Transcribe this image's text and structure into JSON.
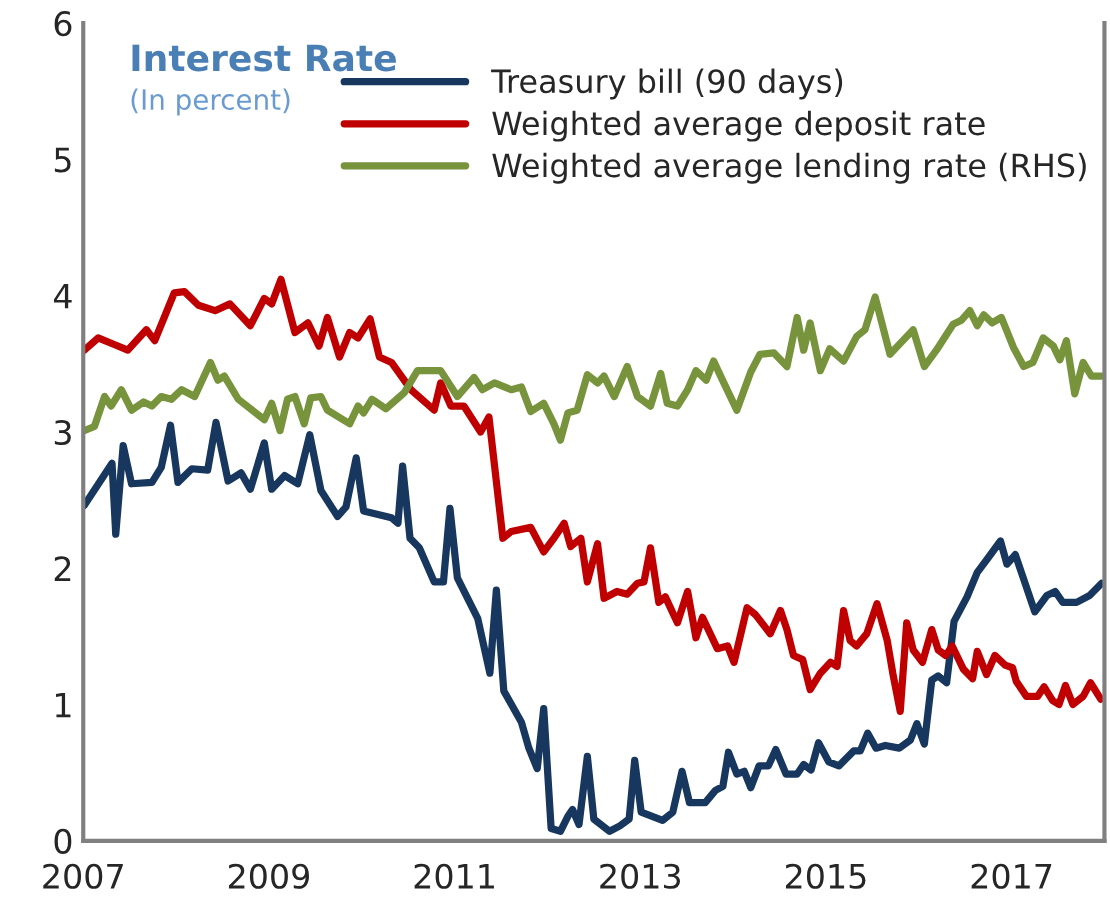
{
  "chart_data": {
    "type": "line",
    "title": "Interest Rate",
    "subtitle": "(In percent)",
    "xlim": [
      2007,
      2018
    ],
    "xticks": [
      2007,
      2009,
      2011,
      2013,
      2015,
      2017
    ],
    "ylim": [
      0,
      6
    ],
    "yticks": [
      0,
      1,
      2,
      3,
      4,
      5,
      6
    ],
    "grid": false,
    "legend": "top",
    "marker": "none",
    "line_style": "solid",
    "series": [
      {
        "name": "Treasury bill (90 days)",
        "color": "#17375e",
        "x": [
          2007.01,
          2007.31,
          2007.35,
          2007.43,
          2007.52,
          2007.74,
          2007.84,
          2007.94,
          2008.02,
          2008.17,
          2008.34,
          2008.43,
          2008.56,
          2008.7,
          2008.8,
          2008.95,
          2009.03,
          2009.17,
          2009.31,
          2009.44,
          2009.56,
          2009.74,
          2009.83,
          2009.94,
          2010.02,
          2010.32,
          2010.39,
          2010.44,
          2010.52,
          2010.62,
          2010.78,
          2010.88,
          2010.95,
          2011.03,
          2011.25,
          2011.38,
          2011.45,
          2011.53,
          2011.72,
          2011.8,
          2011.89,
          2011.96,
          2012.04,
          2012.14,
          2012.22,
          2012.27,
          2012.34,
          2012.43,
          2012.5,
          2012.67,
          2012.78,
          2012.88,
          2012.94,
          2013.01,
          2013.24,
          2013.35,
          2013.45,
          2013.53,
          2013.7,
          2013.81,
          2013.89,
          2013.95,
          2014.04,
          2014.12,
          2014.19,
          2014.28,
          2014.38,
          2014.46,
          2014.57,
          2014.69,
          2014.76,
          2014.84,
          2014.92,
          2015.03,
          2015.14,
          2015.3,
          2015.37,
          2015.45,
          2015.54,
          2015.64,
          2015.79,
          2015.91,
          2015.98,
          2016.06,
          2016.14,
          2016.21,
          2016.3,
          2016.38,
          2016.52,
          2016.63,
          2016.74,
          2016.88,
          2016.95,
          2017.04,
          2017.25,
          2017.38,
          2017.47,
          2017.55,
          2017.7,
          2017.84,
          2017.97
        ],
        "values": [
          2.46,
          2.77,
          2.25,
          2.9,
          2.62,
          2.63,
          2.74,
          3.05,
          2.63,
          2.73,
          2.72,
          3.07,
          2.64,
          2.7,
          2.58,
          2.92,
          2.58,
          2.68,
          2.62,
          2.98,
          2.57,
          2.38,
          2.45,
          2.81,
          2.42,
          2.37,
          2.33,
          2.75,
          2.22,
          2.15,
          1.9,
          1.9,
          2.44,
          1.93,
          1.63,
          1.23,
          1.84,
          1.1,
          0.87,
          0.68,
          0.53,
          0.97,
          0.09,
          0.07,
          0.18,
          0.23,
          0.12,
          0.62,
          0.16,
          0.07,
          0.11,
          0.16,
          0.59,
          0.21,
          0.15,
          0.21,
          0.51,
          0.28,
          0.28,
          0.37,
          0.4,
          0.65,
          0.49,
          0.51,
          0.39,
          0.55,
          0.55,
          0.67,
          0.49,
          0.49,
          0.56,
          0.52,
          0.72,
          0.58,
          0.55,
          0.66,
          0.66,
          0.79,
          0.68,
          0.7,
          0.68,
          0.74,
          0.86,
          0.71,
          1.18,
          1.21,
          1.16,
          1.61,
          1.79,
          1.97,
          2.07,
          2.2,
          2.03,
          2.1,
          1.68,
          1.8,
          1.83,
          1.75,
          1.75,
          1.8,
          1.89
        ]
      },
      {
        "name": "Weighted average deposit rate",
        "color": "#c00000",
        "x": [
          2007.01,
          2007.16,
          2007.34,
          2007.48,
          2007.68,
          2007.77,
          2007.98,
          2008.09,
          2008.24,
          2008.42,
          2008.58,
          2008.8,
          2008.95,
          2009.03,
          2009.13,
          2009.28,
          2009.42,
          2009.54,
          2009.63,
          2009.76,
          2009.87,
          2009.96,
          2010.09,
          2010.19,
          2010.32,
          2010.53,
          2010.78,
          2010.85,
          2010.96,
          2011.1,
          2011.28,
          2011.37,
          2011.52,
          2011.61,
          2011.82,
          2011.96,
          2012.07,
          2012.18,
          2012.25,
          2012.36,
          2012.43,
          2012.54,
          2012.61,
          2012.75,
          2012.86,
          2012.97,
          2013.04,
          2013.11,
          2013.2,
          2013.27,
          2013.4,
          2013.51,
          2013.6,
          2013.67,
          2013.83,
          2013.94,
          2014.01,
          2014.15,
          2014.24,
          2014.4,
          2014.51,
          2014.58,
          2014.65,
          2014.75,
          2014.83,
          2014.94,
          2015.05,
          2015.12,
          2015.19,
          2015.26,
          2015.33,
          2015.44,
          2015.55,
          2015.66,
          2015.72,
          2015.8,
          2015.87,
          2015.94,
          2016.04,
          2016.14,
          2016.21,
          2016.29,
          2016.36,
          2016.48,
          2016.58,
          2016.63,
          2016.73,
          2016.82,
          2016.93,
          2017.01,
          2017.05,
          2017.16,
          2017.28,
          2017.35,
          2017.44,
          2017.51,
          2017.58,
          2017.66,
          2017.77,
          2017.85,
          2017.96
        ],
        "values": [
          3.6,
          3.69,
          3.64,
          3.6,
          3.75,
          3.67,
          4.02,
          4.03,
          3.93,
          3.89,
          3.94,
          3.78,
          3.98,
          3.94,
          4.12,
          3.73,
          3.8,
          3.63,
          3.84,
          3.55,
          3.73,
          3.69,
          3.83,
          3.55,
          3.51,
          3.31,
          3.16,
          3.36,
          3.19,
          3.19,
          3.0,
          3.11,
          2.22,
          2.27,
          2.3,
          2.12,
          2.22,
          2.33,
          2.16,
          2.22,
          1.9,
          2.18,
          1.78,
          1.83,
          1.81,
          1.89,
          1.9,
          2.15,
          1.75,
          1.79,
          1.6,
          1.83,
          1.49,
          1.64,
          1.41,
          1.43,
          1.31,
          1.71,
          1.66,
          1.52,
          1.69,
          1.55,
          1.36,
          1.33,
          1.11,
          1.23,
          1.31,
          1.28,
          1.69,
          1.47,
          1.43,
          1.52,
          1.74,
          1.47,
          1.23,
          0.95,
          1.6,
          1.4,
          1.31,
          1.55,
          1.4,
          1.36,
          1.43,
          1.26,
          1.19,
          1.39,
          1.22,
          1.36,
          1.29,
          1.27,
          1.17,
          1.06,
          1.06,
          1.13,
          1.03,
          1.0,
          1.14,
          1.0,
          1.06,
          1.16,
          1.04
        ]
      },
      {
        "name": "Weighted average lending rate (RHS)",
        "color": "#77933c",
        "x": [
          2007.01,
          2007.12,
          2007.23,
          2007.3,
          2007.41,
          2007.52,
          2007.65,
          2007.74,
          2007.84,
          2007.95,
          2008.06,
          2008.2,
          2008.37,
          2008.45,
          2008.52,
          2008.67,
          2008.95,
          2009.03,
          2009.12,
          2009.2,
          2009.28,
          2009.38,
          2009.45,
          2009.56,
          2009.63,
          2009.87,
          2009.96,
          2010.02,
          2010.11,
          2010.26,
          2010.46,
          2010.6,
          2010.85,
          2011.03,
          2011.21,
          2011.3,
          2011.43,
          2011.61,
          2011.72,
          2011.82,
          2011.96,
          2012.07,
          2012.14,
          2012.22,
          2012.32,
          2012.43,
          2012.54,
          2012.61,
          2012.72,
          2012.86,
          2012.97,
          2013.11,
          2013.22,
          2013.29,
          2013.4,
          2013.51,
          2013.6,
          2013.71,
          2013.79,
          2013.9,
          2014.04,
          2014.19,
          2014.29,
          2014.44,
          2014.58,
          2014.69,
          2014.76,
          2014.83,
          2014.94,
          2015.04,
          2015.19,
          2015.33,
          2015.42,
          2015.53,
          2015.69,
          2015.8,
          2015.94,
          2016.06,
          2016.19,
          2016.37,
          2016.46,
          2016.55,
          2016.63,
          2016.7,
          2016.79,
          2016.89,
          2017.02,
          2017.13,
          2017.23,
          2017.34,
          2017.45,
          2017.52,
          2017.59,
          2017.68,
          2017.77,
          2017.86,
          2017.97
        ],
        "values": [
          3.01,
          3.04,
          3.26,
          3.19,
          3.31,
          3.16,
          3.22,
          3.19,
          3.26,
          3.24,
          3.31,
          3.26,
          3.51,
          3.38,
          3.41,
          3.24,
          3.09,
          3.21,
          3.01,
          3.24,
          3.26,
          3.06,
          3.25,
          3.26,
          3.16,
          3.06,
          3.19,
          3.14,
          3.24,
          3.17,
          3.29,
          3.45,
          3.45,
          3.26,
          3.4,
          3.31,
          3.36,
          3.31,
          3.33,
          3.15,
          3.21,
          3.06,
          2.94,
          3.14,
          3.16,
          3.42,
          3.36,
          3.41,
          3.26,
          3.48,
          3.26,
          3.19,
          3.43,
          3.21,
          3.19,
          3.31,
          3.45,
          3.38,
          3.52,
          3.36,
          3.16,
          3.44,
          3.57,
          3.58,
          3.48,
          3.84,
          3.6,
          3.8,
          3.45,
          3.61,
          3.52,
          3.7,
          3.75,
          3.99,
          3.57,
          3.65,
          3.75,
          3.48,
          3.6,
          3.79,
          3.82,
          3.89,
          3.78,
          3.86,
          3.8,
          3.84,
          3.62,
          3.48,
          3.51,
          3.69,
          3.63,
          3.53,
          3.67,
          3.28,
          3.51,
          3.41,
          3.41
        ]
      }
    ]
  }
}
